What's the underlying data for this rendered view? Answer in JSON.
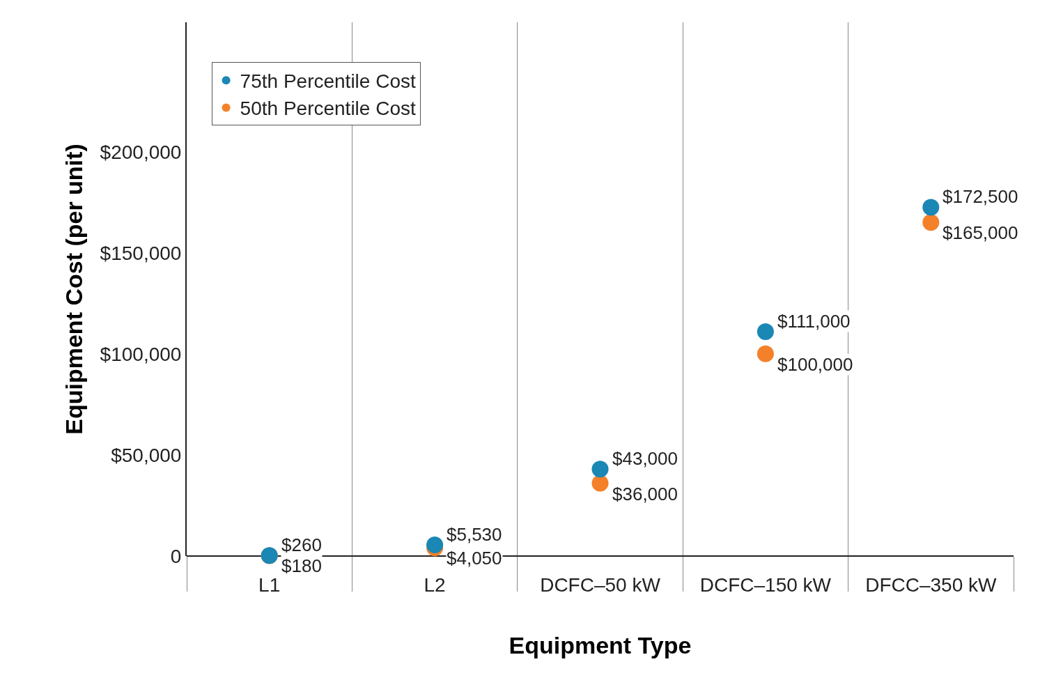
{
  "chart_data": {
    "type": "scatter",
    "xlabel": "Equipment Type",
    "ylabel": "Equipment Cost (per unit)",
    "categories": [
      "L1",
      "L2",
      "DCFC–50 kW",
      "DCFC–150 kW",
      "DFCC–350 kW"
    ],
    "series": [
      {
        "name": "75th Percentile Cost",
        "color": "#1a87b5",
        "values": [
          260,
          5530,
          43000,
          111000,
          172500
        ],
        "value_labels": [
          "$260",
          "$5,530",
          "$43,000",
          "$111,000",
          "$172,500"
        ]
      },
      {
        "name": "50th Percentile Cost",
        "color": "#f4812a",
        "values": [
          180,
          4050,
          36000,
          100000,
          165000
        ],
        "value_labels": [
          "$180",
          "$4,050",
          "$36,000",
          "$100,000",
          "$165,000"
        ]
      }
    ],
    "ylim": [
      0,
      264000
    ],
    "yticks": [
      0,
      {
        "value": 50000,
        "label": "$50,000"
      },
      {
        "value": 100000,
        "label": "$100,000"
      },
      {
        "value": 150000,
        "label": "$150,000"
      },
      {
        "value": 200000,
        "label": "$200,000"
      }
    ],
    "grid": "x",
    "legend": "top left",
    "marker": "circle"
  }
}
